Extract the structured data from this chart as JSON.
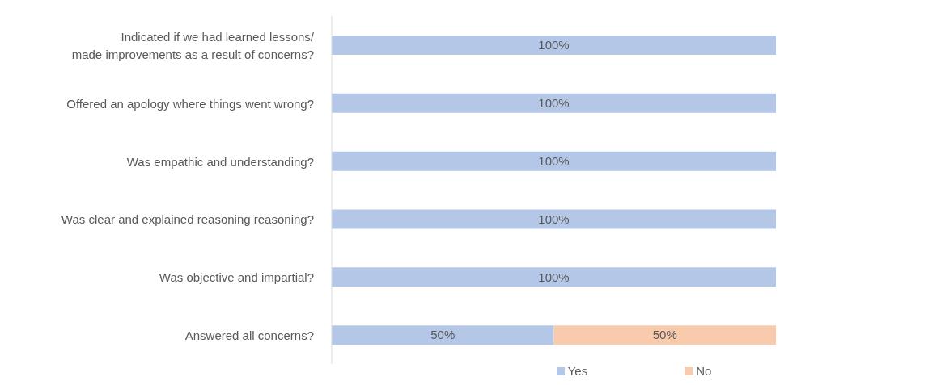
{
  "chart_data": {
    "type": "bar",
    "orientation": "horizontal",
    "stacked": true,
    "legend": "bottom",
    "categories": [
      "Indicated if we had learned lessons/\nmade improvements as a result of concerns?",
      "Offered an apology where things went wrong?",
      "Was empathic and understanding?",
      "Was clear and explained reasoning reasoning?",
      "Was objective and impartial?",
      "Answered all concerns?"
    ],
    "series": [
      {
        "name": "Yes",
        "color": "#b4c7e7",
        "values": [
          100,
          100,
          100,
          100,
          100,
          50
        ],
        "value_labels": [
          "100%",
          "100%",
          "100%",
          "100%",
          "100%",
          "50%"
        ]
      },
      {
        "name": "No",
        "color": "#f8cbad",
        "values": [
          null,
          null,
          null,
          null,
          null,
          50
        ],
        "value_labels": [
          null,
          null,
          null,
          null,
          null,
          "50%"
        ]
      }
    ]
  }
}
